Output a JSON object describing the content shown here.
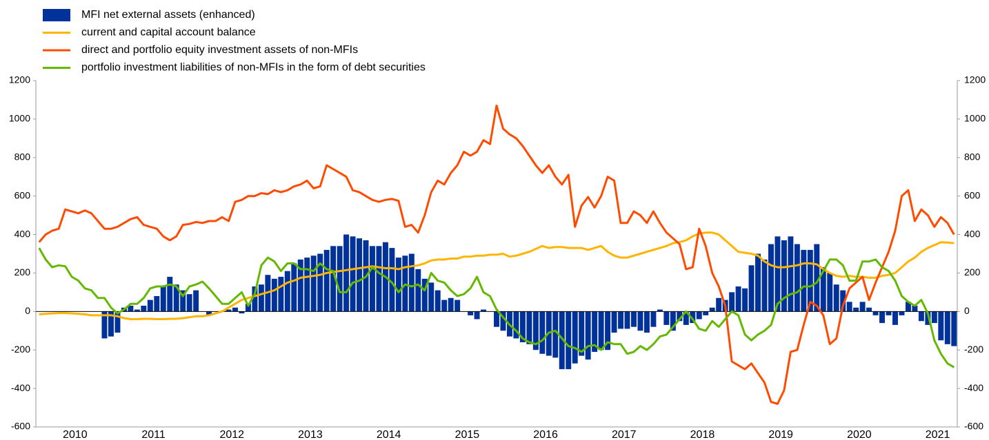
{
  "chart_data": {
    "type": "bar-line",
    "categories": [
      null,
      null,
      null,
      null,
      null,
      null,
      "2010",
      null,
      null,
      null,
      null,
      null,
      null,
      null,
      null,
      null,
      null,
      null,
      "2011",
      null,
      null,
      null,
      null,
      null,
      null,
      null,
      null,
      null,
      null,
      null,
      "2012",
      null,
      null,
      null,
      null,
      null,
      null,
      null,
      null,
      null,
      null,
      null,
      "2013",
      null,
      null,
      null,
      null,
      null,
      null,
      null,
      null,
      null,
      null,
      null,
      "2014",
      null,
      null,
      null,
      null,
      null,
      null,
      null,
      null,
      null,
      null,
      null,
      "2015",
      null,
      null,
      null,
      null,
      null,
      null,
      null,
      null,
      null,
      null,
      null,
      "2016",
      null,
      null,
      null,
      null,
      null,
      null,
      null,
      null,
      null,
      null,
      null,
      "2017",
      null,
      null,
      null,
      null,
      null,
      null,
      null,
      null,
      null,
      null,
      null,
      "2018",
      null,
      null,
      null,
      null,
      null,
      null,
      null,
      null,
      null,
      null,
      null,
      "2019",
      null,
      null,
      null,
      null,
      null,
      null,
      null,
      null,
      null,
      null,
      null,
      "2020",
      null,
      null,
      null,
      null,
      null,
      null,
      null,
      null,
      null,
      null,
      null,
      "2021",
      null,
      null
    ],
    "series": [
      {
        "name": "MFI net external assets (enhanced)",
        "type": "bar",
        "color": "#003299",
        "values": [
          0,
          0,
          0,
          0,
          0,
          0,
          0,
          0,
          0,
          0,
          -140,
          -130,
          -110,
          20,
          30,
          10,
          30,
          60,
          80,
          130,
          180,
          140,
          110,
          90,
          110,
          0,
          -20,
          0,
          0,
          10,
          20,
          -10,
          40,
          130,
          140,
          190,
          170,
          180,
          210,
          250,
          270,
          280,
          290,
          300,
          320,
          340,
          340,
          400,
          390,
          380,
          370,
          340,
          340,
          360,
          330,
          280,
          290,
          300,
          220,
          170,
          150,
          110,
          60,
          70,
          60,
          0,
          -20,
          -40,
          10,
          0,
          -80,
          -100,
          -130,
          -140,
          -160,
          -170,
          -200,
          -220,
          -230,
          -240,
          -300,
          -300,
          -270,
          -230,
          -250,
          -210,
          -200,
          -200,
          -110,
          -90,
          -90,
          -80,
          -100,
          -110,
          -80,
          10,
          -70,
          -100,
          -50,
          -70,
          -60,
          -40,
          -20,
          20,
          70,
          60,
          100,
          130,
          120,
          240,
          300,
          270,
          350,
          390,
          370,
          390,
          350,
          320,
          320,
          350,
          230,
          200,
          140,
          110,
          50,
          20,
          50,
          20,
          -20,
          -60,
          -20,
          -70,
          -20,
          50,
          30,
          -50,
          -70,
          -60,
          -150,
          -170,
          -180
        ]
      },
      {
        "name": "current and capital account balance",
        "type": "line",
        "color": "#ffb400",
        "values": [
          -15,
          -12,
          -10,
          -8,
          -8,
          -10,
          -12,
          -15,
          -20,
          -20,
          -20,
          -20,
          -25,
          -35,
          -40,
          -40,
          -38,
          -38,
          -40,
          -40,
          -38,
          -38,
          -35,
          -30,
          -25,
          -25,
          -20,
          -10,
          0,
          20,
          40,
          60,
          70,
          80,
          90,
          100,
          110,
          130,
          150,
          160,
          175,
          180,
          185,
          190,
          200,
          205,
          210,
          215,
          220,
          225,
          230,
          235,
          230,
          225,
          225,
          220,
          230,
          235,
          240,
          250,
          265,
          270,
          270,
          275,
          275,
          285,
          285,
          290,
          290,
          295,
          295,
          300,
          285,
          290,
          300,
          310,
          325,
          340,
          330,
          335,
          335,
          330,
          330,
          330,
          320,
          330,
          340,
          310,
          290,
          280,
          280,
          290,
          300,
          310,
          320,
          330,
          340,
          355,
          360,
          370,
          390,
          405,
          410,
          410,
          400,
          370,
          340,
          310,
          305,
          300,
          290,
          260,
          240,
          230,
          230,
          235,
          240,
          250,
          250,
          245,
          220,
          200,
          185,
          180,
          185,
          180,
          180,
          175,
          175,
          185,
          190,
          200,
          230,
          260,
          280,
          310,
          330,
          345,
          360,
          358,
          355
        ]
      },
      {
        "name": "direct and portfolio equity investment assets of non-MFIs",
        "type": "line",
        "color": "#ff4b00",
        "values": [
          360,
          400,
          420,
          430,
          530,
          520,
          510,
          525,
          510,
          470,
          430,
          430,
          440,
          460,
          480,
          490,
          450,
          440,
          430,
          390,
          370,
          390,
          450,
          455,
          465,
          460,
          470,
          470,
          490,
          470,
          570,
          580,
          600,
          600,
          615,
          610,
          630,
          620,
          630,
          650,
          660,
          680,
          640,
          650,
          760,
          740,
          720,
          700,
          630,
          620,
          600,
          580,
          570,
          580,
          585,
          575,
          440,
          450,
          410,
          500,
          620,
          680,
          660,
          720,
          760,
          830,
          810,
          830,
          890,
          870,
          1070,
          950,
          920,
          900,
          860,
          810,
          760,
          720,
          760,
          700,
          660,
          710,
          440,
          550,
          595,
          540,
          600,
          700,
          680,
          460,
          460,
          520,
          500,
          460,
          520,
          460,
          410,
          380,
          350,
          220,
          230,
          430,
          340,
          200,
          130,
          30,
          -260,
          -280,
          -300,
          -270,
          -320,
          -370,
          -470,
          -480,
          -410,
          -210,
          -200,
          -70,
          50,
          30,
          -20,
          -170,
          -140,
          30,
          120,
          150,
          180,
          60,
          150,
          230,
          310,
          420,
          600,
          630,
          470,
          530,
          500,
          440,
          490,
          460,
          400
        ]
      },
      {
        "name": "portfolio investment liabilities of non-MFIs in the form of debt securities",
        "type": "line",
        "color": "#65b800",
        "values": [
          330,
          270,
          230,
          240,
          235,
          180,
          160,
          120,
          110,
          70,
          70,
          20,
          -10,
          10,
          40,
          40,
          70,
          120,
          130,
          130,
          140,
          130,
          80,
          130,
          140,
          155,
          120,
          80,
          40,
          40,
          70,
          100,
          30,
          90,
          240,
          280,
          260,
          210,
          250,
          250,
          220,
          220,
          210,
          250,
          220,
          210,
          100,
          100,
          150,
          160,
          180,
          230,
          200,
          180,
          150,
          100,
          140,
          130,
          140,
          110,
          200,
          160,
          150,
          110,
          80,
          90,
          120,
          180,
          100,
          80,
          10,
          -30,
          -70,
          -100,
          -140,
          -160,
          -170,
          -150,
          -110,
          -100,
          -140,
          -180,
          -190,
          -210,
          -180,
          -175,
          -200,
          -160,
          -170,
          -170,
          -220,
          -210,
          -180,
          -200,
          -170,
          -130,
          -120,
          -80,
          -40,
          0,
          -40,
          -90,
          -100,
          -50,
          -80,
          -40,
          0,
          -20,
          -120,
          -150,
          -120,
          -100,
          -70,
          40,
          70,
          90,
          100,
          130,
          130,
          150,
          210,
          270,
          270,
          240,
          160,
          160,
          260,
          260,
          270,
          230,
          210,
          160,
          80,
          50,
          30,
          60,
          -10,
          -150,
          -220,
          -270,
          -290
        ]
      }
    ],
    "ylim": [
      -600,
      1200
    ],
    "yticks": [
      -600,
      -400,
      -200,
      0,
      200,
      400,
      600,
      800,
      1000,
      1200
    ],
    "y2lim": [
      -600,
      1200
    ],
    "y2ticks": [
      -600,
      -400,
      -200,
      0,
      200,
      400,
      600,
      800,
      1000,
      1200
    ],
    "grid": false,
    "legend": "top-left"
  }
}
